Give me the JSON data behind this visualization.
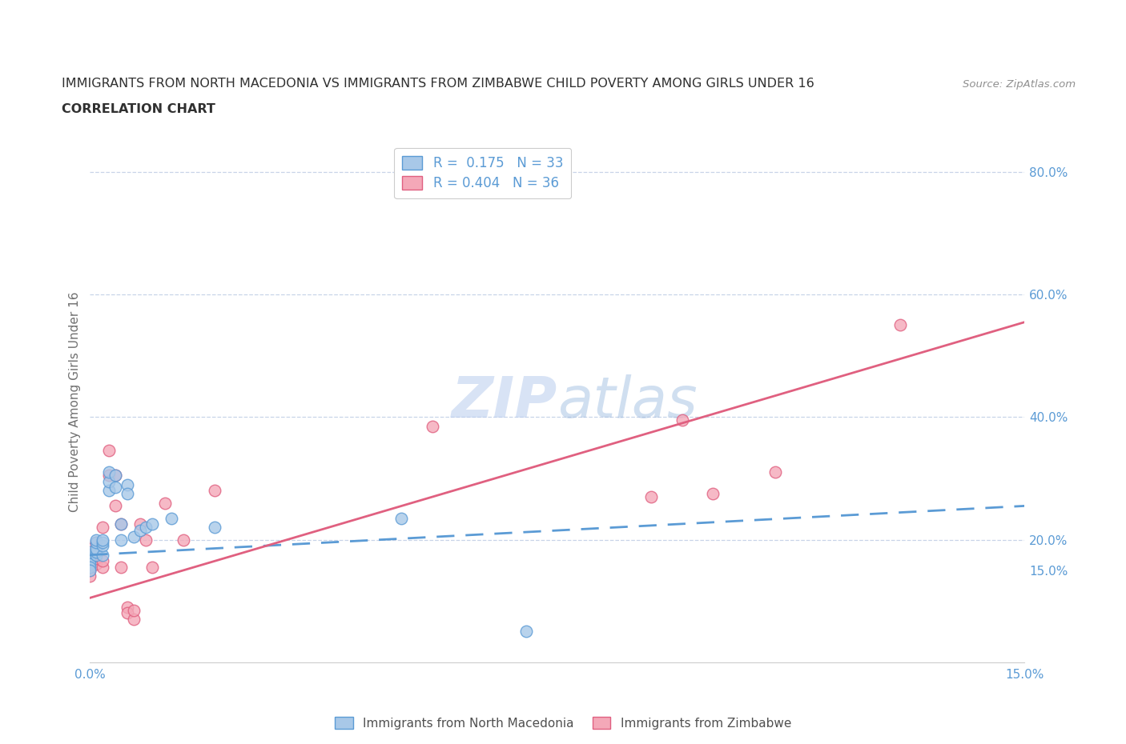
{
  "title_line1": "IMMIGRANTS FROM NORTH MACEDONIA VS IMMIGRANTS FROM ZIMBABWE CHILD POVERTY AMONG GIRLS UNDER 16",
  "title_line2": "CORRELATION CHART",
  "source": "Source: ZipAtlas.com",
  "ylabel": "Child Poverty Among Girls Under 16",
  "r_blue": 0.175,
  "n_blue": 33,
  "r_pink": 0.404,
  "n_pink": 36,
  "legend_blue": "Immigrants from North Macedonia",
  "legend_pink": "Immigrants from Zimbabwe",
  "blue_color": "#a8c8e8",
  "blue_line_color": "#5b9bd5",
  "pink_color": "#f4a8b8",
  "pink_line_color": "#e06080",
  "right_axis_color": "#5b9bd5",
  "xlim_min": 0.0,
  "xlim_max": 0.15,
  "ylim_min": 0.0,
  "ylim_max": 0.85,
  "blue_x": [
    0.0,
    0.0,
    0.0,
    0.0,
    0.0,
    0.0,
    0.0,
    0.001,
    0.001,
    0.001,
    0.001,
    0.001,
    0.002,
    0.002,
    0.002,
    0.002,
    0.003,
    0.003,
    0.003,
    0.004,
    0.004,
    0.005,
    0.005,
    0.006,
    0.006,
    0.007,
    0.008,
    0.009,
    0.01,
    0.013,
    0.02,
    0.05,
    0.07
  ],
  "blue_y": [
    0.17,
    0.175,
    0.18,
    0.165,
    0.16,
    0.155,
    0.15,
    0.175,
    0.18,
    0.185,
    0.195,
    0.2,
    0.175,
    0.19,
    0.195,
    0.2,
    0.28,
    0.295,
    0.31,
    0.285,
    0.305,
    0.2,
    0.225,
    0.29,
    0.275,
    0.205,
    0.215,
    0.22,
    0.225,
    0.235,
    0.22,
    0.235,
    0.05
  ],
  "pink_x": [
    0.0,
    0.0,
    0.0,
    0.0,
    0.0,
    0.0,
    0.0,
    0.0,
    0.001,
    0.001,
    0.001,
    0.002,
    0.002,
    0.002,
    0.003,
    0.003,
    0.004,
    0.004,
    0.005,
    0.005,
    0.006,
    0.006,
    0.007,
    0.007,
    0.008,
    0.009,
    0.01,
    0.012,
    0.015,
    0.02,
    0.055,
    0.09,
    0.095,
    0.1,
    0.11,
    0.13
  ],
  "pink_y": [
    0.16,
    0.165,
    0.175,
    0.18,
    0.185,
    0.155,
    0.15,
    0.14,
    0.16,
    0.17,
    0.195,
    0.155,
    0.165,
    0.22,
    0.305,
    0.345,
    0.255,
    0.305,
    0.155,
    0.225,
    0.09,
    0.08,
    0.07,
    0.085,
    0.225,
    0.2,
    0.155,
    0.26,
    0.2,
    0.28,
    0.385,
    0.27,
    0.395,
    0.275,
    0.31,
    0.55
  ],
  "background_color": "#ffffff",
  "grid_color": "#c8d4e8",
  "title_color": "#303030",
  "axis_label_color": "#707070",
  "watermark_color": "#d0dff0",
  "blue_regression_x0": 0.0,
  "blue_regression_x1": 0.15,
  "blue_regression_y0": 0.175,
  "blue_regression_y1": 0.255,
  "pink_regression_x0": 0.0,
  "pink_regression_x1": 0.15,
  "pink_regression_y0": 0.105,
  "pink_regression_y1": 0.555
}
